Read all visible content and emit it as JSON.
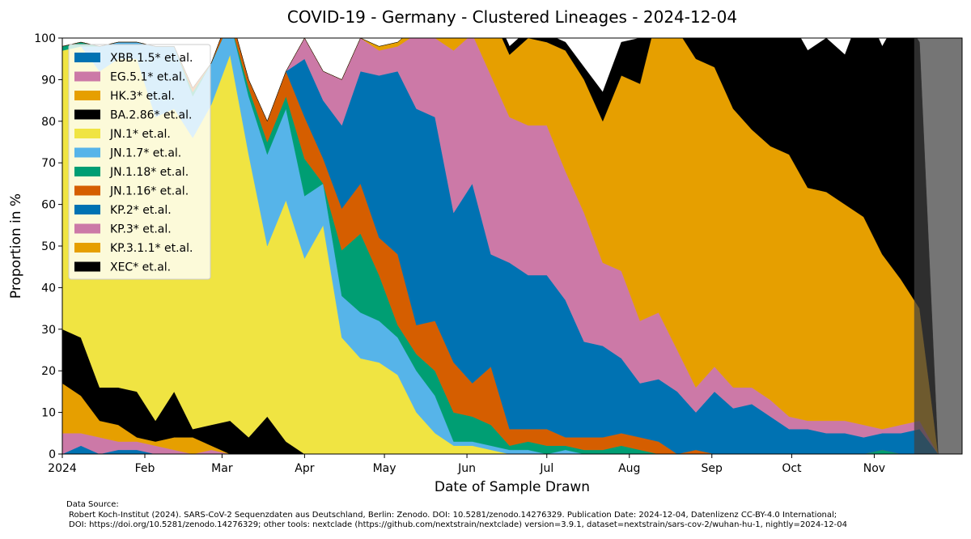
{
  "chart_data": {
    "type": "area",
    "title": "COVID-19 - Germany - Clustered Lineages - 2024-12-04",
    "xlabel": "Date of Sample Drawn",
    "ylabel": "Proportion in %",
    "ylim": [
      0,
      100
    ],
    "xlim": [
      "2024-01-01",
      "2024-12-04"
    ],
    "yticks": [
      "0",
      "10",
      "20",
      "30",
      "40",
      "50",
      "60",
      "70",
      "80",
      "90",
      "100"
    ],
    "xticks": [
      {
        "date": "2024-01-01",
        "label": "2024"
      },
      {
        "date": "2024-02-01",
        "label": "Feb"
      },
      {
        "date": "2024-03-01",
        "label": "Mar"
      },
      {
        "date": "2024-04-01",
        "label": "Apr"
      },
      {
        "date": "2024-05-01",
        "label": "May"
      },
      {
        "date": "2024-06-01",
        "label": "Jun"
      },
      {
        "date": "2024-07-01",
        "label": "Jul"
      },
      {
        "date": "2024-08-01",
        "label": "Aug"
      },
      {
        "date": "2024-09-01",
        "label": "Sep"
      },
      {
        "date": "2024-10-01",
        "label": "Oct"
      },
      {
        "date": "2024-11-01",
        "label": "Nov"
      }
    ],
    "shaded_region": {
      "from": "2024-11-16",
      "to": "2024-12-04",
      "color": "#404040"
    },
    "legend_position": "top-left",
    "grid": false,
    "x": [
      "2024-01-01",
      "2024-01-08",
      "2024-01-15",
      "2024-01-22",
      "2024-01-29",
      "2024-02-05",
      "2024-02-12",
      "2024-02-19",
      "2024-02-26",
      "2024-03-04",
      "2024-03-11",
      "2024-03-18",
      "2024-03-25",
      "2024-04-01",
      "2024-04-08",
      "2024-04-15",
      "2024-04-22",
      "2024-04-29",
      "2024-05-06",
      "2024-05-13",
      "2024-05-20",
      "2024-05-27",
      "2024-06-03",
      "2024-06-10",
      "2024-06-17",
      "2024-06-24",
      "2024-07-01",
      "2024-07-08",
      "2024-07-15",
      "2024-07-22",
      "2024-07-29",
      "2024-08-05",
      "2024-08-12",
      "2024-08-19",
      "2024-08-26",
      "2024-09-02",
      "2024-09-09",
      "2024-09-16",
      "2024-09-23",
      "2024-09-30",
      "2024-10-07",
      "2024-10-14",
      "2024-10-21",
      "2024-10-28",
      "2024-11-04",
      "2024-11-11",
      "2024-11-18",
      "2024-11-25",
      "2024-12-02"
    ],
    "series": [
      {
        "name": "XBB.1.5* et.al.",
        "color": "#0072B2",
        "values": [
          0,
          2,
          0,
          1,
          1,
          0,
          0,
          0,
          0,
          0,
          0,
          0,
          0,
          0,
          0,
          0,
          0,
          0,
          0,
          0,
          0,
          0,
          0,
          0,
          0,
          0,
          0,
          0,
          0,
          0,
          0,
          0,
          0,
          0,
          0,
          0,
          0,
          0,
          0,
          0,
          0,
          0,
          0,
          0,
          0,
          0,
          0,
          0,
          0
        ]
      },
      {
        "name": "EG.5.1* et.al.",
        "color": "#CC79A7",
        "values": [
          5,
          3,
          4,
          2,
          2,
          2,
          1,
          0,
          1,
          0,
          0,
          0,
          0,
          0,
          0,
          0,
          0,
          0,
          0,
          0,
          0,
          0,
          0,
          0,
          0,
          0,
          0,
          0,
          0,
          0,
          0,
          0,
          0,
          0,
          0,
          0,
          0,
          0,
          0,
          0,
          0,
          0,
          0,
          0,
          0,
          0,
          0,
          0,
          0
        ]
      },
      {
        "name": "HK.3* et.al.",
        "color": "#E69F00",
        "values": [
          12,
          9,
          4,
          4,
          1,
          1,
          3,
          4,
          1,
          0,
          0,
          0,
          0,
          0,
          0,
          0,
          0,
          0,
          0,
          0,
          0,
          0,
          0,
          0,
          0,
          0,
          0,
          0,
          0,
          0,
          0,
          0,
          0,
          0,
          0,
          0,
          0,
          0,
          0,
          0,
          0,
          0,
          0,
          0,
          0,
          0,
          0,
          0,
          0
        ]
      },
      {
        "name": "BA.2.86* et.al.",
        "color": "#000000",
        "values": [
          13,
          14,
          8,
          9,
          11,
          5,
          11,
          2,
          5,
          8,
          4,
          9,
          3,
          0,
          0,
          0,
          0,
          0,
          0,
          0,
          0,
          0,
          0,
          0,
          0,
          0,
          0,
          0,
          0,
          0,
          0,
          0,
          0,
          0,
          0,
          0,
          0,
          0,
          0,
          0,
          0,
          0,
          0,
          0,
          0,
          0,
          0,
          0,
          0
        ]
      },
      {
        "name": "JN.1* et.al.",
        "color": "#F0E442",
        "values": [
          67,
          70,
          76,
          79,
          80,
          73,
          68,
          70,
          77,
          88,
          68,
          41,
          58,
          47,
          55,
          28,
          23,
          22,
          19,
          10,
          5,
          2,
          2,
          1,
          0,
          0,
          0,
          0,
          0,
          0,
          0,
          0,
          0,
          0,
          0,
          0,
          0,
          0,
          0,
          0,
          0,
          0,
          0,
          0,
          0,
          0,
          0,
          0,
          0
        ]
      },
      {
        "name": "JN.1.7* et.al.",
        "color": "#56B4E9",
        "values": [
          0,
          0,
          6,
          4,
          4,
          17,
          15,
          10,
          10,
          8,
          14,
          22,
          22,
          15,
          10,
          10,
          11,
          10,
          9,
          10,
          9,
          1,
          1,
          1,
          1,
          1,
          0,
          1,
          0,
          0,
          0,
          0,
          0,
          0,
          0,
          0,
          0,
          0,
          0,
          0,
          0,
          0,
          0,
          0,
          0,
          0,
          0,
          0,
          0
        ]
      },
      {
        "name": "JN.1.18* et.al.",
        "color": "#009E73",
        "values": [
          1,
          1,
          0,
          0,
          0,
          0,
          0,
          1,
          0,
          0,
          2,
          3,
          3,
          9,
          0,
          11,
          19,
          11,
          3,
          4,
          6,
          7,
          6,
          5,
          1,
          2,
          2,
          1,
          1,
          1,
          2,
          1,
          0,
          0,
          0,
          0,
          0,
          0,
          0,
          0,
          0,
          0,
          0,
          0,
          1,
          0,
          0,
          0,
          0
        ]
      },
      {
        "name": "JN.1.16* et.al.",
        "color": "#D55E00",
        "values": [
          0,
          0,
          0,
          0,
          0,
          0,
          0,
          1,
          0,
          2,
          2,
          5,
          6,
          10,
          6,
          10,
          12,
          9,
          17,
          7,
          12,
          12,
          8,
          14,
          4,
          3,
          4,
          2,
          3,
          3,
          3,
          3,
          3,
          0,
          1,
          0,
          0,
          0,
          0,
          0,
          0,
          0,
          0,
          0,
          0,
          0,
          0,
          0,
          0
        ]
      },
      {
        "name": "KP.2* et.al.",
        "color": "#0072B2",
        "values": [
          0,
          0,
          0,
          0,
          0,
          0,
          0,
          0,
          0,
          0,
          0,
          0,
          0,
          14,
          14,
          20,
          27,
          39,
          44,
          52,
          49,
          36,
          48,
          27,
          40,
          37,
          37,
          33,
          23,
          22,
          18,
          13,
          15,
          15,
          9,
          15,
          11,
          12,
          9,
          6,
          6,
          5,
          5,
          4,
          4,
          5,
          6,
          0,
          0
        ]
      },
      {
        "name": "KP.3* et.al.",
        "color": "#CC79A7",
        "values": [
          0,
          0,
          0,
          0,
          0,
          0,
          0,
          0,
          0,
          0,
          0,
          0,
          0,
          5,
          7,
          11,
          8,
          6,
          6,
          18,
          19,
          39,
          36,
          43,
          35,
          36,
          36,
          31,
          31,
          20,
          21,
          15,
          16,
          10,
          6,
          6,
          5,
          4,
          4,
          3,
          2,
          3,
          3,
          3,
          1,
          2,
          2,
          0,
          0
        ]
      },
      {
        "name": "KP.3.1.1* et.al.",
        "color": "#E69F00",
        "values": [
          0,
          0,
          0,
          0,
          0,
          0,
          0,
          0,
          0,
          0,
          0,
          0,
          0,
          0,
          0,
          0,
          0,
          1,
          1,
          2,
          2,
          4,
          5,
          15,
          15,
          21,
          20,
          29,
          32,
          34,
          47,
          57,
          73,
          77,
          79,
          72,
          67,
          62,
          61,
          63,
          56,
          55,
          52,
          50,
          42,
          35,
          27,
          0,
          0
        ]
      },
      {
        "name": "XEC* et.al.",
        "color": "#000000",
        "values": [
          0,
          0,
          0,
          0,
          0,
          0,
          0,
          0,
          0,
          0,
          0,
          0,
          0,
          0,
          0,
          0,
          0,
          0,
          0,
          0,
          0,
          0,
          2,
          2,
          2,
          2,
          2,
          2,
          3,
          7,
          8,
          11,
          5,
          8,
          22,
          22,
          31,
          32,
          37,
          33,
          33,
          37,
          36,
          51,
          50,
          64,
          64,
          0,
          0
        ]
      }
    ]
  },
  "source": {
    "heading": "Data Source:",
    "line1": "Robert Koch-Institut (2024). SARS-CoV-2 Sequenzdaten aus Deutschland, Berlin: Zenodo. DOI: 10.5281/zenodo.14276329. Publication Date: 2024-12-04, Datenlizenz CC-BY-4.0 International;",
    "line2": "DOI: https://doi.org/10.5281/zenodo.14276329; other tools: nextclade (https://github.com/nextstrain/nextclade) version=3.9.1, dataset=nextstrain/sars-cov-2/wuhan-hu-1, nightly=2024-12-04"
  }
}
